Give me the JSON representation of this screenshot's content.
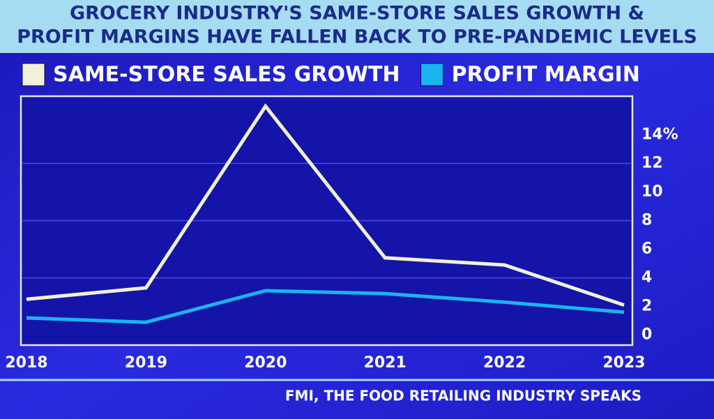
{
  "chart_data": {
    "type": "line",
    "title": [
      "GROCERY INDUSTRY'S SAME-STORE SALES GROWTH &",
      "PROFIT MARGINS HAVE FALLEN BACK TO PRE-PANDEMIC LEVELS"
    ],
    "x": [
      2018,
      2019,
      2020,
      2021,
      2022,
      2023
    ],
    "xlim": [
      2018,
      2023
    ],
    "xticks": [
      2018,
      2019,
      2020,
      2021,
      2022,
      2023
    ],
    "series": [
      {
        "name": "SAME-STORE SALES GROWTH",
        "color": "#f2f0d6",
        "values": [
          2.5,
          3.3,
          16.0,
          5.4,
          4.9,
          2.1
        ]
      },
      {
        "name": "PROFIT MARGIN",
        "color": "#1ab4f0",
        "values": [
          1.2,
          0.9,
          3.1,
          2.9,
          2.3,
          1.6
        ]
      }
    ],
    "ylim": [
      -0.7,
      16.7
    ],
    "yticks": [
      0,
      2,
      4,
      6,
      8,
      10,
      12,
      {
        "value": 14,
        "label": "14%"
      }
    ],
    "grid": true,
    "source": "FMI, THE FOOD RETAILING INDUSTRY SPEAKS"
  }
}
